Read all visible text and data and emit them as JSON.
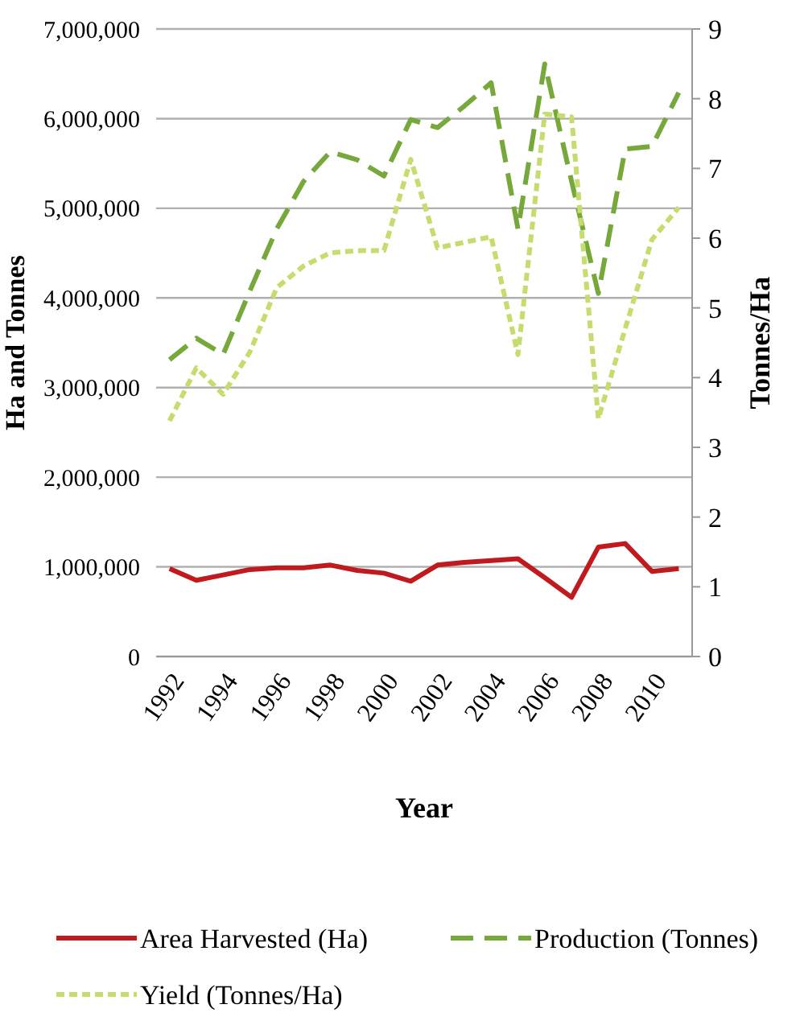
{
  "chart_data": {
    "type": "line",
    "xlabel": "Year",
    "ylabel": "Ha and Tonnes",
    "y2label": "Tonnes/Ha",
    "x": [
      1992,
      1993,
      1994,
      1995,
      1996,
      1997,
      1998,
      1999,
      2000,
      2001,
      2002,
      2003,
      2004,
      2005,
      2006,
      2007,
      2008,
      2009,
      2010,
      2011
    ],
    "xlim": [
      1991.5,
      2011.5
    ],
    "xticks": [
      1992,
      1994,
      1996,
      1998,
      2000,
      2002,
      2004,
      2006,
      2008,
      2010
    ],
    "ylim": [
      0,
      7000000
    ],
    "yticks": [
      {
        "value": 0,
        "label": "0"
      },
      {
        "value": 1000000,
        "label": "1,000,000"
      },
      {
        "value": 2000000,
        "label": "2,000,000"
      },
      {
        "value": 3000000,
        "label": "3,000,000"
      },
      {
        "value": 4000000,
        "label": "4,000,000"
      },
      {
        "value": 5000000,
        "label": "5,000,000"
      },
      {
        "value": 6000000,
        "label": "6,000,000"
      },
      {
        "value": 7000000,
        "label": "7,000,000"
      }
    ],
    "y2lim": [
      0,
      9
    ],
    "y2ticks": [
      0,
      1,
      2,
      3,
      4,
      5,
      6,
      7,
      8,
      9
    ],
    "grid": "y",
    "legend": "bottom",
    "series": [
      {
        "name": "Area Harvested (Ha)",
        "color": "#c0191e",
        "line_style": "solid",
        "values": [
          980000,
          850000,
          910000,
          970000,
          990000,
          990000,
          1020000,
          960000,
          930000,
          840000,
          1020000,
          1050000,
          1070000,
          1090000,
          880000,
          660000,
          1220000,
          1260000,
          950000,
          980000
        ]
      },
      {
        "name": "Production (Tonnes)",
        "color": "#77a83c",
        "line_style": "dashed",
        "values": [
          3310000,
          3550000,
          3370000,
          4080000,
          4770000,
          5300000,
          5630000,
          5540000,
          5360000,
          5990000,
          5900000,
          6140000,
          6400000,
          4770000,
          6610000,
          5300000,
          4050000,
          5660000,
          5690000,
          6290000
        ]
      },
      {
        "name": "Yield (Tonnes/Ha)",
        "color": "#c5dc6e",
        "line_style": "dotted",
        "axis": "y2",
        "values": [
          3.38,
          4.14,
          3.76,
          4.37,
          5.29,
          5.6,
          5.79,
          5.82,
          5.82,
          7.13,
          5.86,
          5.94,
          6.02,
          4.33,
          7.78,
          7.74,
          3.41,
          4.7,
          5.98,
          6.44
        ]
      }
    ]
  }
}
